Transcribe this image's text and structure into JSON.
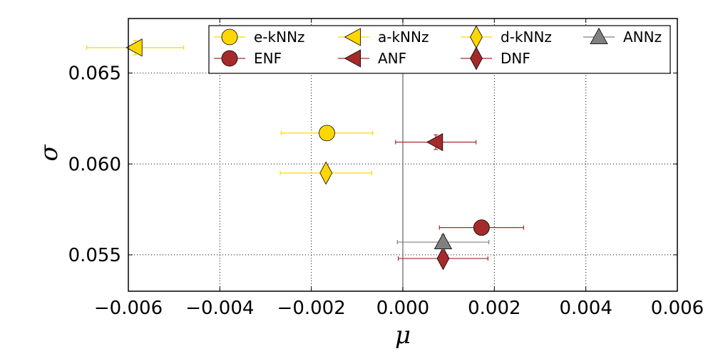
{
  "chart_data": {
    "type": "scatter",
    "title": "",
    "xlabel": "μ",
    "ylabel": "σ",
    "xlim": [
      -0.006,
      0.006
    ],
    "ylim": [
      0.053,
      0.068
    ],
    "grid": true,
    "legend_position": "top-right",
    "xticks": [
      -0.006,
      -0.004,
      -0.002,
      0.0,
      0.002,
      0.004,
      0.006
    ],
    "xtick_labels": [
      "−0.006",
      "−0.004",
      "−0.002",
      "0.000",
      "0.002",
      "0.004",
      "0.006"
    ],
    "yticks": [
      0.055,
      0.06,
      0.065
    ],
    "ytick_labels": [
      "0.055",
      "0.060",
      "0.065"
    ],
    "series": [
      {
        "name": "e-kNNz",
        "marker": "circle",
        "color": "#ffd700",
        "x": -0.00166,
        "y": 0.0617,
        "xerr": 0.001,
        "yerr": 0.0
      },
      {
        "name": "ENF",
        "marker": "circle",
        "color": "#a52a2a",
        "x": 0.00172,
        "y": 0.0565,
        "xerr": 0.00092,
        "yerr": 0.0
      },
      {
        "name": "a-kNNz",
        "marker": "triangle-left",
        "color": "#ffd700",
        "x": -0.00585,
        "y": 0.0664,
        "xerr": 0.00106,
        "yerr": 0.0004
      },
      {
        "name": "ANF",
        "marker": "triangle-left",
        "color": "#a52a2a",
        "x": 0.00072,
        "y": 0.0612,
        "xerr": 0.00088,
        "yerr": 0.0004
      },
      {
        "name": "d-kNNz",
        "marker": "diamond",
        "color": "#ffd700",
        "x": -0.00168,
        "y": 0.0595,
        "xerr": 0.001,
        "yerr": 0.0
      },
      {
        "name": "DNF",
        "marker": "diamond",
        "color": "#a52a2a",
        "x": 0.00088,
        "y": 0.0548,
        "xerr": 0.00098,
        "yerr": 0.0
      },
      {
        "name": "ANNz",
        "marker": "triangle-up",
        "color": "#808080",
        "x": 0.00088,
        "y": 0.0557,
        "xerr": 0.001,
        "yerr": 0.0004
      }
    ],
    "reference_line": {
      "x": 0.0,
      "color": "#808080"
    }
  }
}
